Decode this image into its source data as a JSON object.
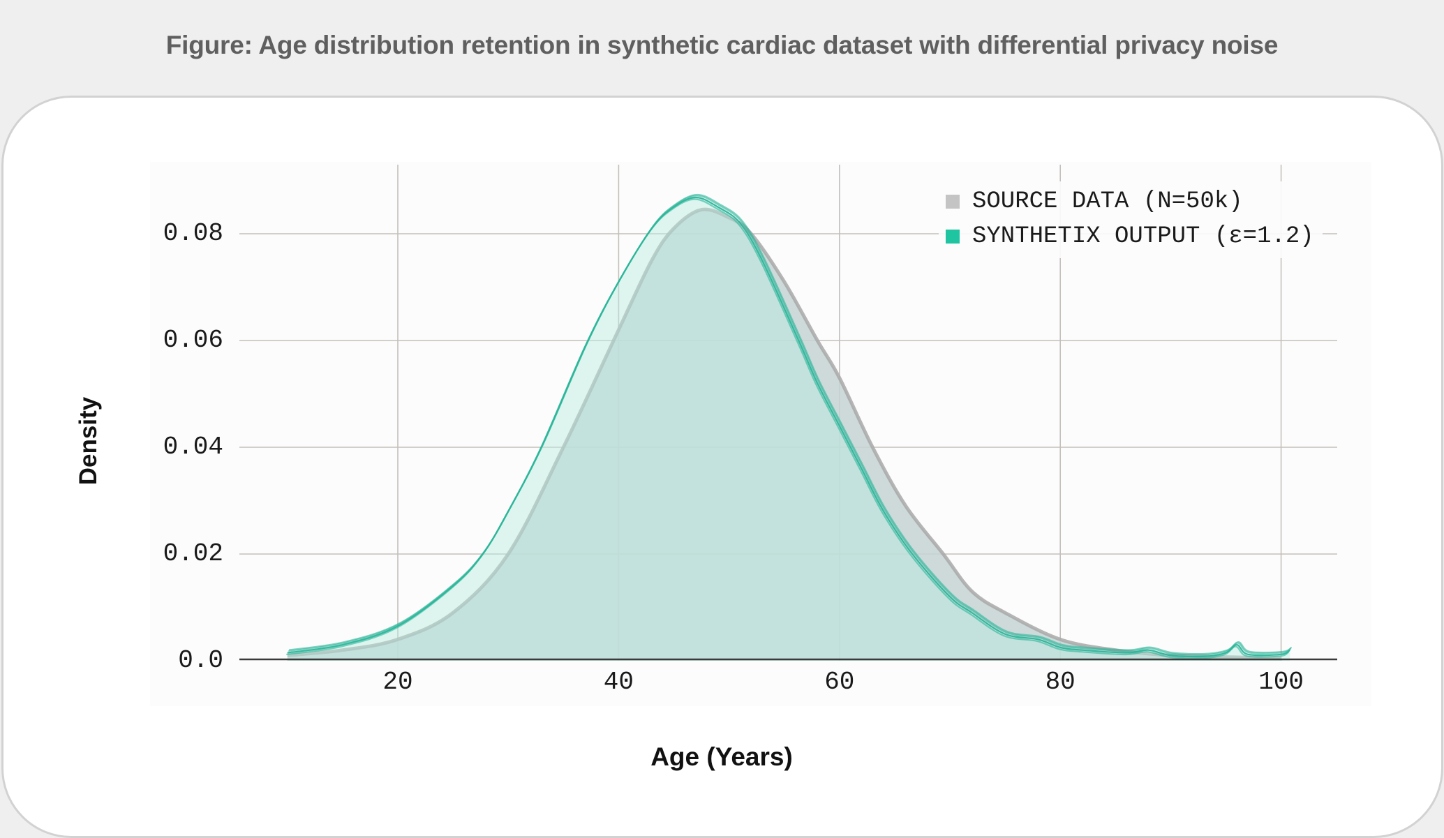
{
  "figure": {
    "title": "Figure: Age distribution retention in synthetic cardiac dataset with differential privacy noise"
  },
  "colors": {
    "page_background": "#efefef",
    "card_background": "#ffffff",
    "card_border": "#d2d2d2",
    "source": "#a8a8a8",
    "source_fill": "#c6d3d3",
    "synthetic": "#2bb59a",
    "synthetic_fill": "#b9ebe0",
    "grid": "#c4bfba",
    "axis": "#3a3a3a"
  },
  "axes": {
    "xlabel": "Age (Years)",
    "ylabel": "Density",
    "xticks": [
      "20",
      "40",
      "60",
      "80",
      "100"
    ],
    "yticks": [
      "0.0",
      "0.02",
      "0.04",
      "0.06",
      "0.08"
    ]
  },
  "legend": {
    "items": [
      {
        "label": "SOURCE DATA (N=50k)",
        "color": "#c4c4c4"
      },
      {
        "label": "SYNTHETIX OUTPUT (ε=1.2)",
        "color": "#1fc4a0"
      }
    ]
  },
  "chart_data": {
    "type": "area",
    "title": "Figure: Age distribution retention in synthetic cardiac dataset with differential privacy noise",
    "xlabel": "Age (Years)",
    "ylabel": "Density",
    "xlim": [
      10,
      102
    ],
    "ylim": [
      0,
      0.09
    ],
    "xticks": [
      20,
      40,
      60,
      80,
      100
    ],
    "yticks": [
      0.0,
      0.02,
      0.04,
      0.06,
      0.08
    ],
    "grid": true,
    "legend_position": "upper right",
    "series": [
      {
        "name": "SOURCE DATA (N=50k)",
        "x": [
          10,
          15,
          20,
          25,
          30,
          35,
          40,
          43,
          45,
          47.5,
          50,
          52,
          55,
          58,
          60,
          63,
          66,
          69.4,
          72,
          75,
          80,
          85,
          90,
          95,
          100
        ],
        "y": [
          0.001,
          0.002,
          0.004,
          0.009,
          0.02,
          0.04,
          0.062,
          0.075,
          0.081,
          0.0845,
          0.083,
          0.08,
          0.071,
          0.06,
          0.053,
          0.04,
          0.029,
          0.02,
          0.013,
          0.009,
          0.004,
          0.002,
          0.001,
          0.0007,
          0.0005
        ]
      },
      {
        "name": "SYNTHETIX OUTPUT (ε=1.2)",
        "x": [
          10,
          15,
          20,
          25,
          27.7,
          30,
          33,
          37,
          40,
          43,
          45,
          47,
          49,
          51,
          53,
          56.3,
          58,
          60,
          62,
          64,
          66.6,
          70,
          72,
          75,
          78,
          80,
          82,
          86,
          88,
          90,
          93,
          95,
          96,
          97,
          100,
          100.8
        ],
        "y": [
          0.0015,
          0.003,
          0.0065,
          0.014,
          0.02,
          0.028,
          0.04,
          0.059,
          0.071,
          0.081,
          0.085,
          0.0868,
          0.085,
          0.082,
          0.075,
          0.06,
          0.052,
          0.044,
          0.036,
          0.028,
          0.02,
          0.012,
          0.009,
          0.005,
          0.004,
          0.0025,
          0.002,
          0.0015,
          0.002,
          0.001,
          0.0008,
          0.0015,
          0.003,
          0.0012,
          0.0012,
          0.002
        ]
      }
    ]
  }
}
